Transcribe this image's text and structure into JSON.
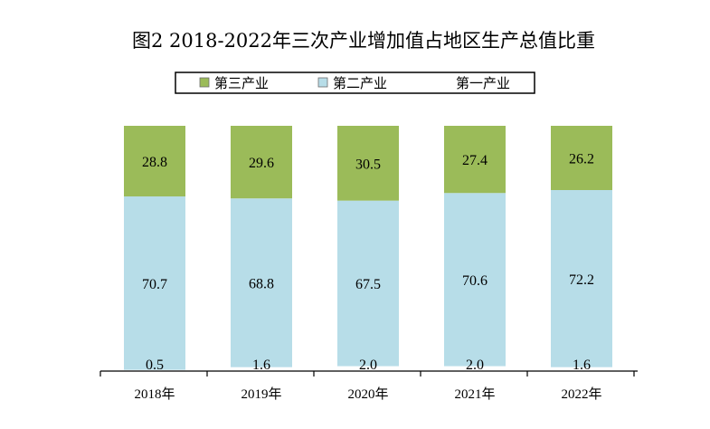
{
  "chart_data": {
    "type": "bar",
    "stacked": true,
    "title": "图2  2018-2022年三次产业增加值占地区生产总值比重",
    "categories": [
      "2018年",
      "2019年",
      "2020年",
      "2021年",
      "2022年"
    ],
    "series": [
      {
        "name": "第一产业",
        "values": [
          0.5,
          1.6,
          2.0,
          2.0,
          1.6
        ],
        "color": "#ffffff"
      },
      {
        "name": "第二产业",
        "values": [
          70.7,
          68.8,
          67.5,
          70.6,
          72.2
        ],
        "color": "#b7dde8"
      },
      {
        "name": "第三产业",
        "values": [
          28.8,
          29.6,
          30.5,
          27.4,
          26.2
        ],
        "color": "#9bbb59"
      }
    ],
    "value_labels": {
      "第一产业": [
        "0.5",
        "1.6",
        "2.0",
        "2.0",
        "1.6"
      ],
      "第二产业": [
        "70.7",
        "68.8",
        "67.5",
        "70.6",
        "72.2"
      ],
      "第三产业": [
        "28.8",
        "29.6",
        "30.5",
        "27.4",
        "26.2"
      ]
    },
    "legend": {
      "position": "top",
      "order": [
        "第三产业",
        "第二产业",
        "第一产业"
      ]
    },
    "ylim": [
      0,
      100
    ],
    "grid": false
  }
}
